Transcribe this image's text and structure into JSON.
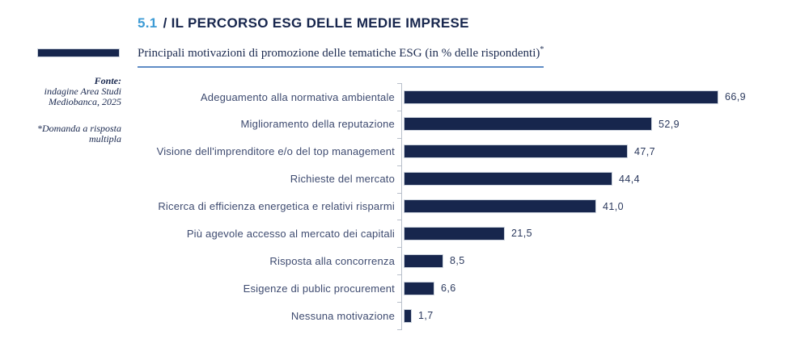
{
  "header": {
    "section_number": "5.1",
    "title": "/ IL PERCORSO ESG DELLE MEDIE IMPRESE",
    "subtitle": "Principali motivazioni di promozione delle tematiche ESG (in % delle rispondenti)",
    "subtitle_note_marker": "*"
  },
  "sidebar": {
    "source_label": "Fonte:",
    "source_lines": [
      "indagine Area Studi",
      "Mediobanca, 2025"
    ],
    "footnote_lines": [
      "*Domanda a risposta",
      "multipla"
    ]
  },
  "colors": {
    "accent_light_blue": "#3d9bd5",
    "navy": "#17264d",
    "bar_fill": "#17264d",
    "bar_border": "#cdd4de",
    "label_text": "#3e4b70",
    "axis_line": "#b9c0cb",
    "subtitle_underline": "#5f8cc6"
  },
  "chart_data": {
    "type": "bar",
    "orientation": "horizontal",
    "title": "Principali motivazioni di promozione delle tematiche ESG (in % delle rispondenti)*",
    "categories": [
      "Adeguamento alla normativa ambientale",
      "Miglioramento della reputazione",
      "Visione dell'imprenditore e/o del top management",
      "Richieste del mercato",
      "Ricerca di efficienza energetica e relativi risparmi",
      "Più agevole accesso al mercato dei capitali",
      "Risposta alla concorrenza",
      "Esigenze di public procurement",
      "Nessuna motivazione"
    ],
    "values": [
      66.9,
      52.9,
      47.7,
      44.4,
      41.0,
      21.5,
      8.5,
      6.6,
      1.7
    ],
    "value_labels": [
      "66,9",
      "52,9",
      "47,7",
      "44,4",
      "41,0",
      "21,5",
      "8,5",
      "6,6",
      "1,7"
    ],
    "unit": "%",
    "xlim": [
      0,
      70
    ],
    "grid": false,
    "x_axis_labels_shown": false,
    "value_labels_shown": true,
    "legend_position": "none"
  }
}
